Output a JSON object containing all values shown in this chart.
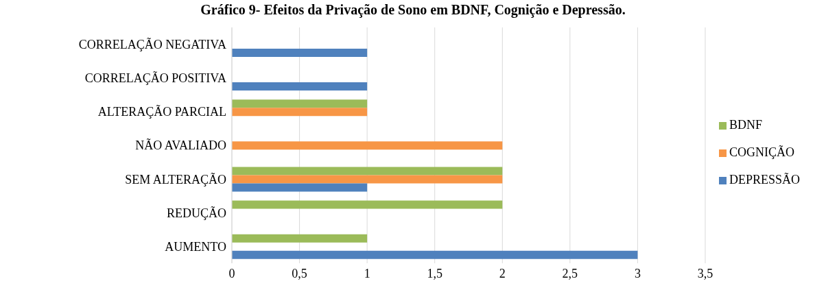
{
  "chart_data": {
    "type": "bar",
    "orientation": "horizontal",
    "title": "Gráfico 9- Efeitos da Privação de Sono em BDNF, Cognição e Depressão.",
    "categories": [
      "CORRELAÇÃO NEGATIVA",
      "CORRELAÇÃO POSITIVA",
      "ALTERAÇÃO PARCIAL",
      "NÃO AVALIADO",
      "SEM ALTERAÇÃO",
      "REDUÇÃO",
      "AUMENTO"
    ],
    "series": [
      {
        "name": "BDNF",
        "color": "#9bbb59",
        "values": [
          null,
          null,
          1,
          null,
          2,
          2,
          1
        ]
      },
      {
        "name": "COGNIÇÃO",
        "color": "#f79646",
        "values": [
          null,
          null,
          1,
          2,
          2,
          null,
          null
        ]
      },
      {
        "name": "DEPRESSÃO",
        "color": "#4f81bd",
        "values": [
          1,
          1,
          null,
          null,
          1,
          null,
          3
        ]
      }
    ],
    "xlim": [
      0,
      3.5
    ],
    "xticks": [
      0,
      {
        "value": 0.5,
        "label": "0,5"
      },
      1,
      {
        "value": 1.5,
        "label": "1,5"
      },
      2,
      {
        "value": 2.5,
        "label": "2,5"
      },
      3,
      {
        "value": 3.5,
        "label": "3,5"
      }
    ],
    "grid": "x",
    "legend": "right"
  }
}
